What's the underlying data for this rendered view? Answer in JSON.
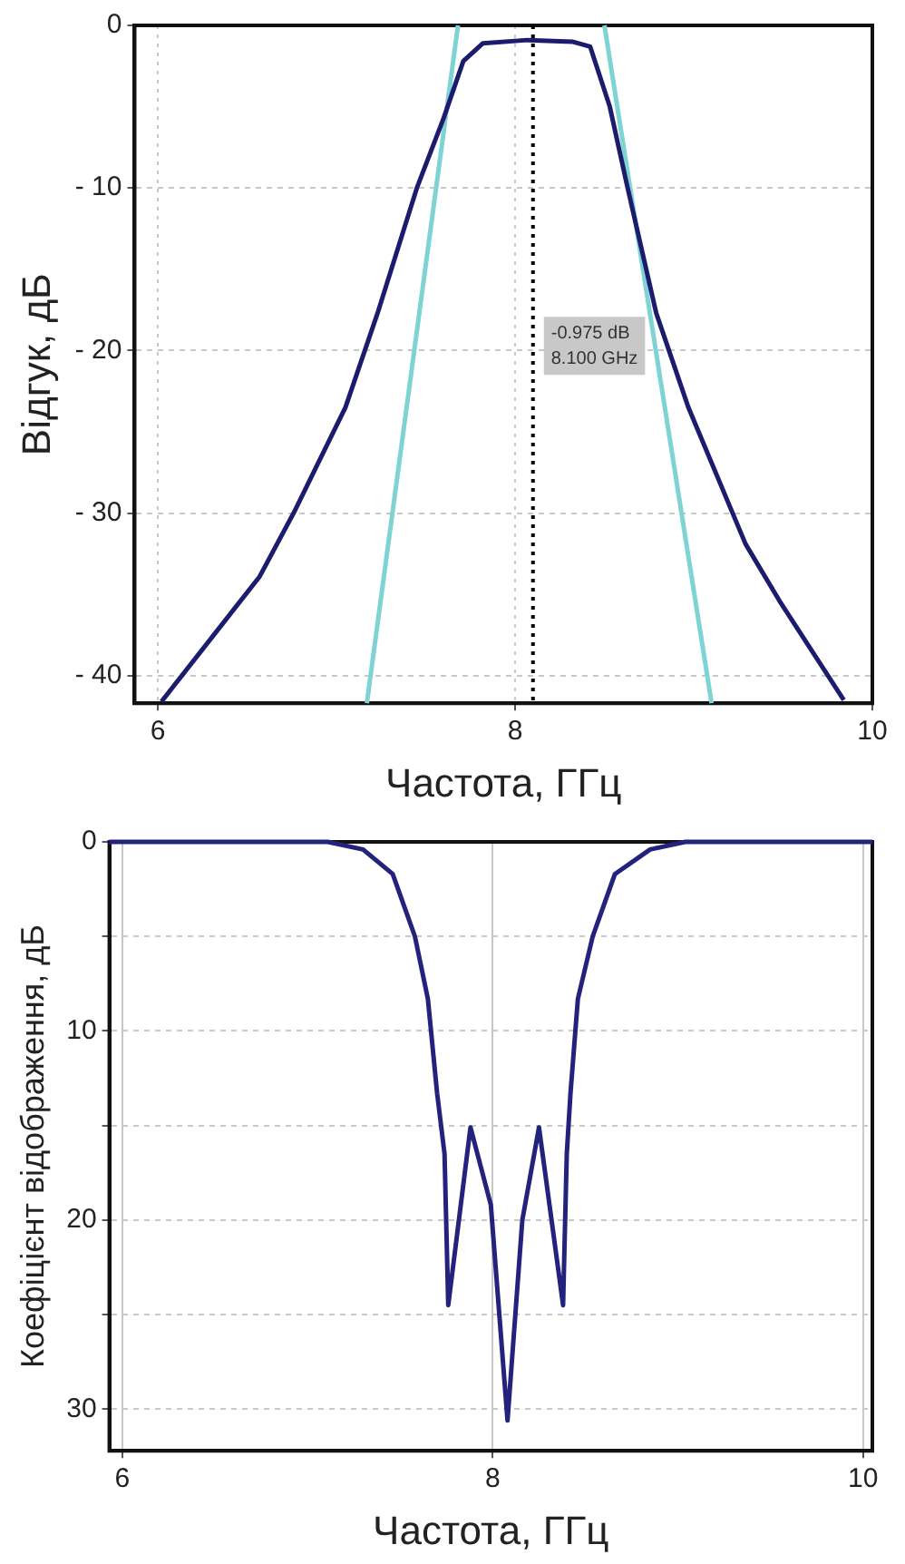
{
  "chart_data": [
    {
      "type": "line",
      "xlabel": "Частота, ГГц",
      "ylabel": "Відгук, дБ",
      "xlim": [
        5.87,
        10
      ],
      "ylim": [
        -41.7,
        0
      ],
      "xticks": [
        6,
        8,
        10
      ],
      "yticks": [
        0,
        {
          "value": -10,
          "label": "- 10"
        },
        {
          "value": -20,
          "label": "- 20"
        },
        {
          "value": -30,
          "label": "- 30"
        },
        {
          "value": -40,
          "label": "- 40"
        }
      ],
      "grid": true,
      "legend": false,
      "marker": "none",
      "line_style": "solid",
      "series": [
        {
          "color": "#1c1c6e",
          "x": [
            6.02,
            6.57,
            6.76,
            7.05,
            7.23,
            7.45,
            7.6,
            7.71,
            7.82,
            8.07,
            8.32,
            8.42,
            8.53,
            8.63,
            8.79,
            8.97,
            9.29,
            9.48,
            9.84
          ],
          "values": [
            -41.6,
            -33.9,
            -30,
            -23.5,
            -17.7,
            -10,
            -5.7,
            -2.2,
            -1.1,
            -0.9,
            -1.0,
            -1.3,
            -5,
            -10,
            -17.7,
            -23.5,
            -31.9,
            -35.4,
            -41.5
          ]
        },
        {
          "color": "#7fd3d3",
          "x": [
            7.17,
            7.68
          ],
          "values": [
            -41.7,
            0
          ]
        },
        {
          "color": "#7fd3d3",
          "x": [
            8.5,
            9.1
          ],
          "values": [
            0,
            -41.7
          ]
        }
      ],
      "ref_lines": [
        {
          "axis": "x",
          "value": 8.1,
          "color": "#000000",
          "line_style": "dotted"
        }
      ],
      "annotations": [
        "-0.975 dB",
        "8.100 GHz"
      ]
    },
    {
      "type": "line",
      "xlabel": "Частота, ГГц",
      "ylabel": "Коефіцієнт відображення, дБ",
      "xlim": [
        5.93,
        10.05
      ],
      "ylim": [
        32.2,
        0
      ],
      "xticks": [
        6,
        8,
        10
      ],
      "yticks": [
        0,
        {
          "value": 5,
          "label": null
        },
        10,
        {
          "value": 15,
          "label": null
        },
        20,
        {
          "value": 25,
          "label": null
        },
        30
      ],
      "grid": true,
      "legend": false,
      "marker": "none",
      "line_style": "solid",
      "series": [
        {
          "color": "#23237e",
          "x": [
            5.93,
            6.5,
            7.11,
            7.3,
            7.46,
            7.58,
            7.65,
            7.7,
            7.74,
            7.76,
            7.88,
            7.99,
            8.08,
            8.16,
            8.25,
            8.38,
            8.4,
            8.42,
            8.46,
            8.54,
            8.66,
            8.85,
            9.04,
            9.5,
            10.05
          ],
          "values": [
            0,
            0,
            0,
            0.4,
            1.7,
            5,
            8.3,
            13.3,
            16.5,
            24.5,
            15.1,
            19.2,
            30.6,
            20,
            15.1,
            24.5,
            16.5,
            13.3,
            8.3,
            5,
            1.7,
            0.4,
            0,
            0,
            0
          ]
        }
      ]
    }
  ]
}
